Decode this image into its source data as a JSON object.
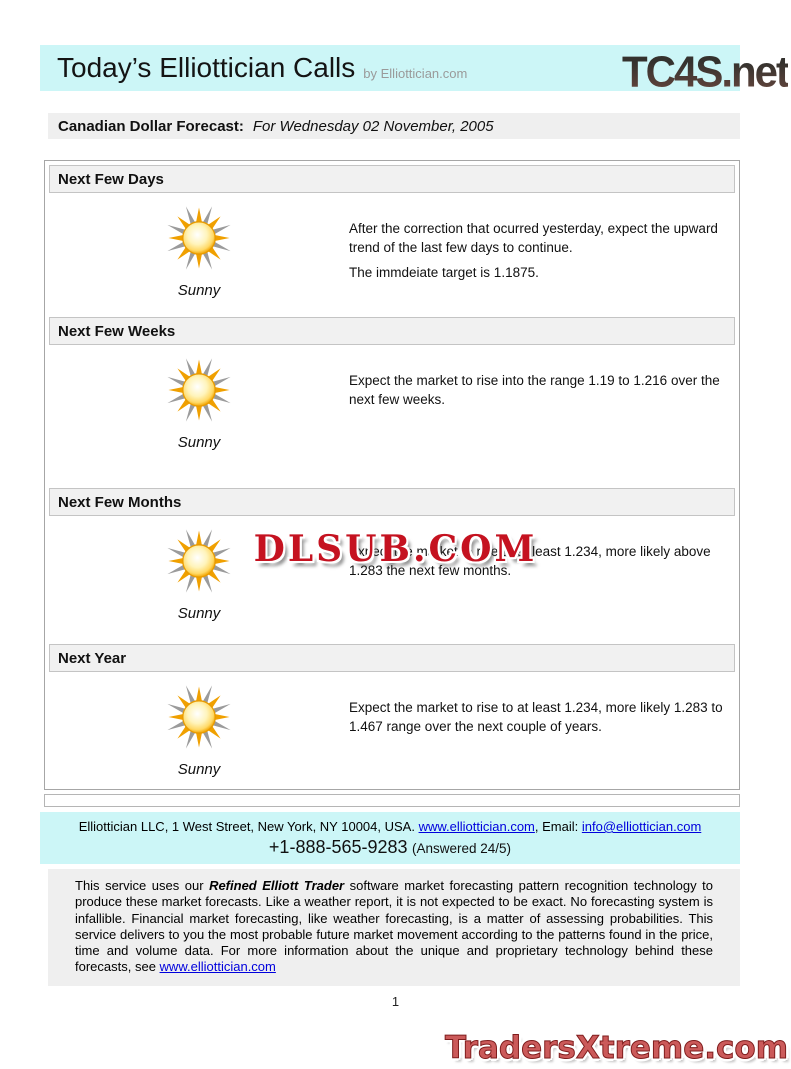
{
  "branding": {
    "site_logo": "TC4S.net",
    "watermark": "DLSUB.COM",
    "footer_logo": "TradersXtreme.com"
  },
  "header": {
    "title": "Today’s Elliottician Calls",
    "byline": "by Elliottician.com"
  },
  "forecast_bar": {
    "label": "Canadian Dollar Forecast:",
    "date": "For Wednesday 02 November, 2005"
  },
  "sections": [
    {
      "title": "Next Few Days",
      "condition": "Sunny",
      "icon": "sun-icon",
      "paragraphs": [
        "After the correction that ocurred yesterday, expect the upward trend of the last few days to continue.",
        "The immdeiate target is 1.1875."
      ]
    },
    {
      "title": "Next Few Weeks",
      "condition": "Sunny",
      "icon": "sun-icon",
      "paragraphs": [
        "Expect the market to rise into the range 1.19 to 1.216 over the next few weeks."
      ]
    },
    {
      "title": "Next Few Months",
      "condition": "Sunny",
      "icon": "sun-icon",
      "paragraphs": [
        "Expect the market to rise to at least 1.234, more likely above 1.283 the next few months."
      ]
    },
    {
      "title": "Next Year",
      "condition": "Sunny",
      "icon": "sun-icon",
      "paragraphs": [
        "Expect the market to rise to at least 1.234, more likely 1.283 to 1.467 range over the next couple of years."
      ]
    }
  ],
  "footer": {
    "address_prefix": "Elliottician LLC, 1 West Street, New York, NY 10004, USA. ",
    "website_link": "www.elliottician.com",
    "email_label": ", Email: ",
    "email_link": "info@elliottician.com",
    "phone": "+1-888-565-9283",
    "phone_note": "(Answered 24/5)"
  },
  "disclaimer": {
    "part1": "This service uses our ",
    "product_name": "Refined Elliott Trader",
    "part2": " software market forecasting pattern recognition technology to produce these market forecasts. Like a weather report, it is not expected to be exact. No forecasting system is infallible. Financial market forecasting, like weather forecasting, is a matter of assessing probabilities. This service delivers to you the most probable future market movement according to the patterns found in the price, time and volume data. For more information about the unique and proprietary technology behind these forecasts, see ",
    "link": "www.elliottician.com"
  },
  "page": {
    "number": "1"
  },
  "section_heights": [
    124,
    143,
    128,
    113
  ],
  "colors": {
    "header_bg": "#ccf6f7",
    "panel_bg": "#efefef",
    "link": "#0000dd",
    "watermark_red": "#c51220",
    "footer_logo_red": "#cb5a5a",
    "sun_orange": "#f0a000"
  }
}
